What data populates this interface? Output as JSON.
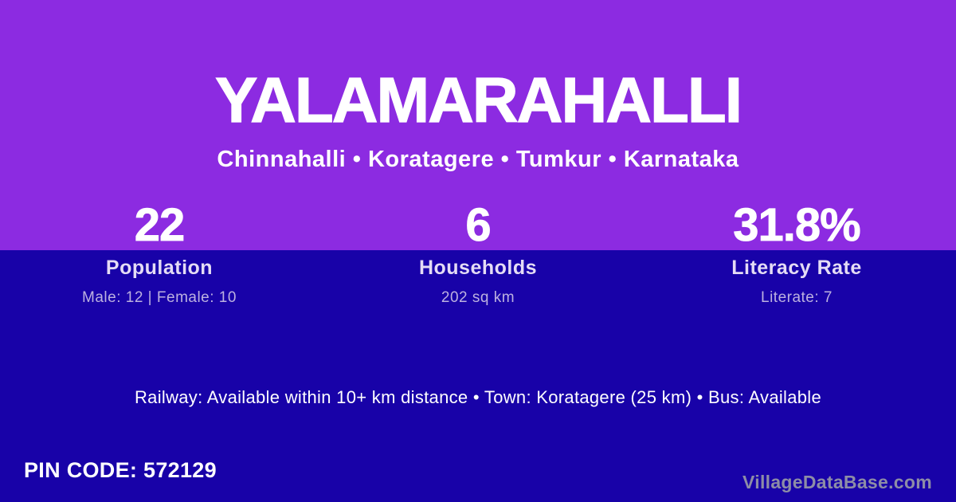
{
  "theme": {
    "top_background": "#8c2be1",
    "bottom_background": "#1802a8",
    "primary_text": "#ffffff",
    "label_text": "#e4dcf5",
    "sublabel_text": "#bcb1e0",
    "watermark_text": "#8d8da6"
  },
  "header": {
    "title": "YALAMARAHALLI",
    "subtitle": "Chinnahalli • Koratagere • Tumkur • Karnataka"
  },
  "stats": [
    {
      "value": "22",
      "label": "Population",
      "sub": "Male: 12 | Female: 10"
    },
    {
      "value": "6",
      "label": "Households",
      "sub": "202 sq km"
    },
    {
      "value": "31.8%",
      "label": "Literacy Rate",
      "sub": "Literate: 7"
    }
  ],
  "info_line": "Railway: Available within 10+ km distance  •  Town: Koratagere (25 km)  •  Bus: Available",
  "footer": {
    "pin_code": "PIN CODE: 572129",
    "watermark": "VillageDataBase.com"
  }
}
